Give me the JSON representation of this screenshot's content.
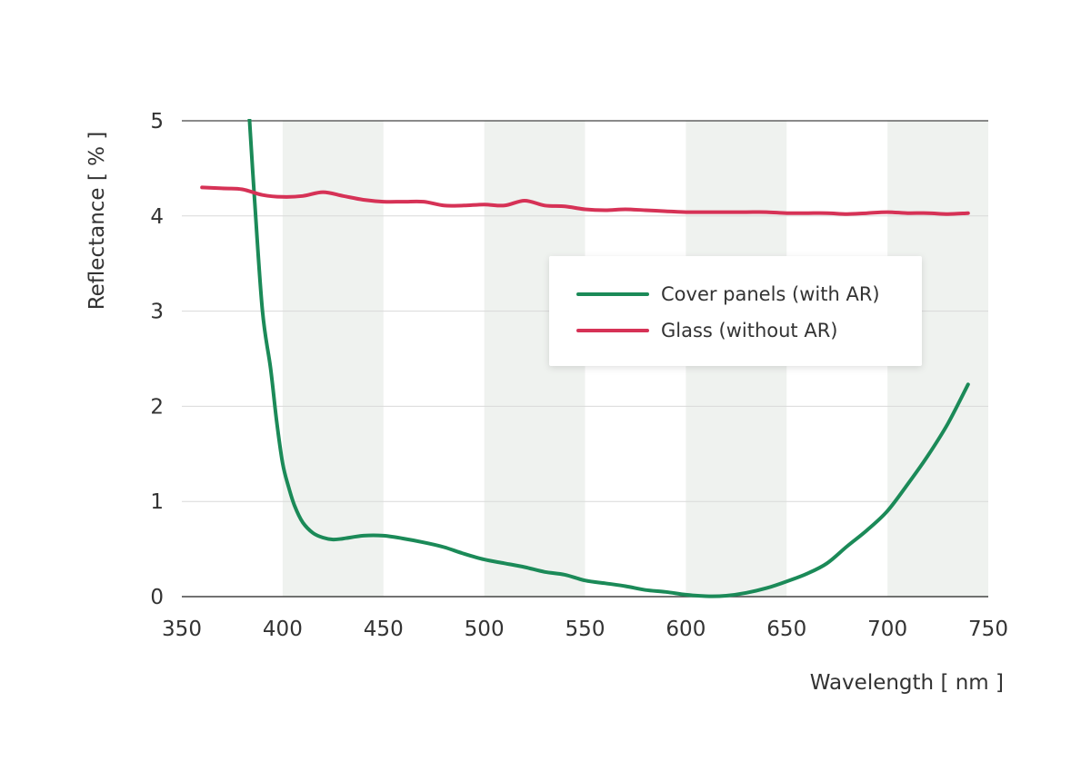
{
  "chart_data": {
    "type": "line",
    "xlabel": "Wavelength [ nm ]",
    "ylabel": "Reflectance [ % ]",
    "xlim": [
      350,
      750
    ],
    "ylim": [
      0,
      5
    ],
    "xticks": [
      "350",
      "400",
      "450",
      "500",
      "550",
      "600",
      "650",
      "700",
      "750"
    ],
    "yticks": [
      "0",
      "1",
      "2",
      "3",
      "4",
      "5"
    ],
    "grid": "horizontal gridlines; alternating shaded bands every 50 nm",
    "band_color": "#eff2ef",
    "legend_position": "center-right",
    "series": [
      {
        "name": "Cover panels (with AR)",
        "color": "#1b8a58",
        "points": [
          [
            383,
            5.2
          ],
          [
            386,
            4.2
          ],
          [
            390,
            3.0
          ],
          [
            394,
            2.4
          ],
          [
            397,
            1.85
          ],
          [
            400,
            1.4
          ],
          [
            403,
            1.15
          ],
          [
            406,
            0.95
          ],
          [
            410,
            0.78
          ],
          [
            415,
            0.67
          ],
          [
            420,
            0.62
          ],
          [
            425,
            0.6
          ],
          [
            430,
            0.61
          ],
          [
            440,
            0.64
          ],
          [
            450,
            0.64
          ],
          [
            460,
            0.61
          ],
          [
            470,
            0.57
          ],
          [
            480,
            0.52
          ],
          [
            490,
            0.45
          ],
          [
            500,
            0.39
          ],
          [
            510,
            0.35
          ],
          [
            520,
            0.31
          ],
          [
            530,
            0.26
          ],
          [
            540,
            0.23
          ],
          [
            550,
            0.17
          ],
          [
            560,
            0.14
          ],
          [
            570,
            0.11
          ],
          [
            580,
            0.07
          ],
          [
            590,
            0.05
          ],
          [
            600,
            0.02
          ],
          [
            610,
            0.005
          ],
          [
            620,
            0.01
          ],
          [
            630,
            0.04
          ],
          [
            640,
            0.09
          ],
          [
            650,
            0.16
          ],
          [
            660,
            0.24
          ],
          [
            670,
            0.35
          ],
          [
            680,
            0.53
          ],
          [
            690,
            0.7
          ],
          [
            700,
            0.9
          ],
          [
            710,
            1.18
          ],
          [
            720,
            1.48
          ],
          [
            730,
            1.82
          ],
          [
            740,
            2.23
          ]
        ]
      },
      {
        "name": "Glass (without AR)",
        "color": "#d63256",
        "points": [
          [
            360,
            4.3
          ],
          [
            370,
            4.29
          ],
          [
            380,
            4.28
          ],
          [
            390,
            4.22
          ],
          [
            400,
            4.2
          ],
          [
            410,
            4.21
          ],
          [
            420,
            4.25
          ],
          [
            430,
            4.21
          ],
          [
            440,
            4.17
          ],
          [
            450,
            4.15
          ],
          [
            460,
            4.15
          ],
          [
            470,
            4.15
          ],
          [
            480,
            4.11
          ],
          [
            490,
            4.11
          ],
          [
            500,
            4.12
          ],
          [
            510,
            4.11
          ],
          [
            520,
            4.16
          ],
          [
            530,
            4.11
          ],
          [
            540,
            4.1
          ],
          [
            550,
            4.07
          ],
          [
            560,
            4.06
          ],
          [
            570,
            4.07
          ],
          [
            580,
            4.06
          ],
          [
            590,
            4.05
          ],
          [
            600,
            4.04
          ],
          [
            610,
            4.04
          ],
          [
            620,
            4.04
          ],
          [
            630,
            4.04
          ],
          [
            640,
            4.04
          ],
          [
            650,
            4.03
          ],
          [
            660,
            4.03
          ],
          [
            670,
            4.03
          ],
          [
            680,
            4.02
          ],
          [
            690,
            4.03
          ],
          [
            700,
            4.04
          ],
          [
            710,
            4.03
          ],
          [
            720,
            4.03
          ],
          [
            730,
            4.02
          ],
          [
            740,
            4.03
          ]
        ]
      }
    ]
  }
}
